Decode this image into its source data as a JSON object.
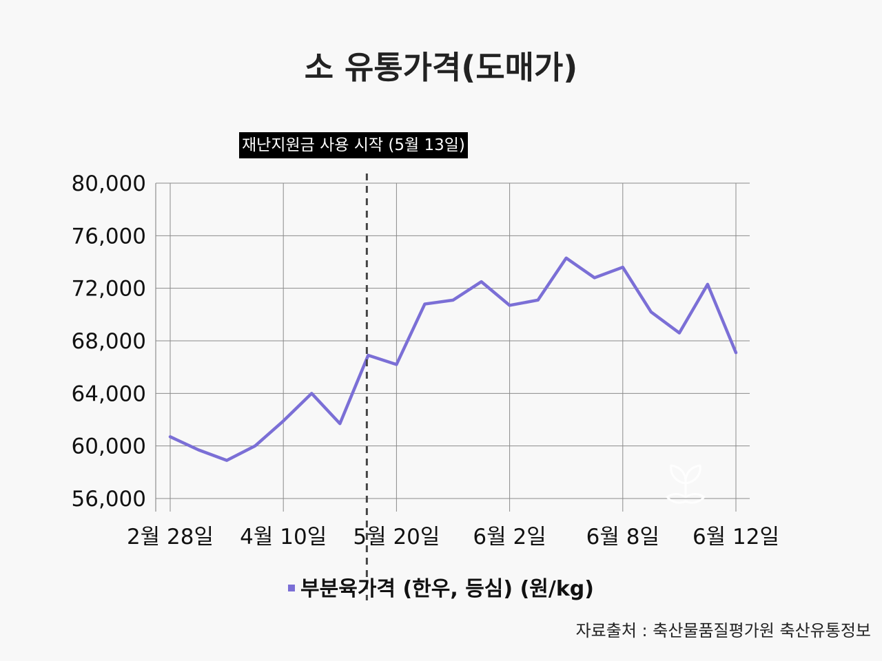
{
  "chart_data": {
    "type": "line",
    "title": "소 유통가격(도매가)",
    "x": [
      "2월 28일",
      "",
      "",
      "",
      "4월 10일",
      "",
      "",
      "",
      "5월 20일",
      "",
      "",
      "",
      "6월 2일",
      "",
      "",
      "",
      "6월 8일",
      "",
      "",
      "",
      "6월 12일"
    ],
    "series": [
      {
        "name": "부분육가격 (한우, 등심) (원/kg)",
        "color": "#7b6fd6",
        "values": [
          60700,
          59700,
          58900,
          60000,
          61900,
          64000,
          61700,
          66900,
          66200,
          70800,
          71100,
          72500,
          70700,
          71100,
          74300,
          72800,
          73600,
          70200,
          68600,
          72300,
          67100
        ]
      }
    ],
    "ylim": [
      56000,
      80000
    ],
    "yticks": [
      56000,
      60000,
      64000,
      68000,
      72000,
      76000,
      80000
    ],
    "ytick_labels": [
      "56,000",
      "60,000",
      "64,000",
      "68,000",
      "72,000",
      "76,000",
      "80,000"
    ],
    "xtick_labels": [
      "2월 28일",
      "4월 10일",
      "5월 20일",
      "6월 2일",
      "6월 8일",
      "6월 12일"
    ],
    "grid": true,
    "legend": "bottom",
    "annotation": {
      "label": "재난지원금 사용 시작 (5월 13일)",
      "x_index": 7
    },
    "source": "자료출처 : 축산물품질평가원 축산유통정보"
  }
}
